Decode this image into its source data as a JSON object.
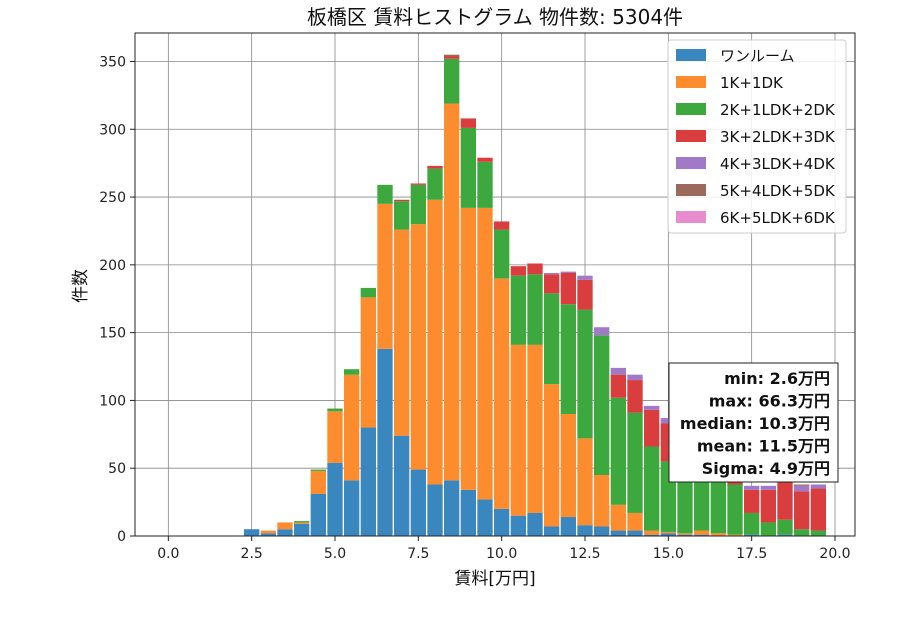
{
  "chart_data": {
    "type": "bar",
    "stacked": true,
    "title": "板橋区 賃料ヒストグラム 物件数: 5304件",
    "xlabel": "賃料[万円]",
    "ylabel": "件数",
    "xlim": [
      -1.0,
      20.6
    ],
    "ylim": [
      0,
      371
    ],
    "xticks": [
      0.0,
      2.5,
      5.0,
      7.5,
      10.0,
      12.5,
      15.0,
      17.5,
      20.0
    ],
    "xtick_labels": [
      "0.0",
      "2.5",
      "5.0",
      "7.5",
      "10.0",
      "12.5",
      "15.0",
      "17.5",
      "20.0"
    ],
    "yticks": [
      0,
      50,
      100,
      150,
      200,
      250,
      300,
      350
    ],
    "ytick_labels": [
      "0",
      "50",
      "100",
      "150",
      "200",
      "250",
      "300",
      "350"
    ],
    "grid": true,
    "legend_position": "top-right",
    "bin_width": 0.5,
    "bins": [
      2.5,
      3.0,
      3.5,
      4.0,
      4.5,
      5.0,
      5.5,
      6.0,
      6.5,
      7.0,
      7.5,
      8.0,
      8.5,
      9.0,
      9.5,
      10.0,
      10.5,
      11.0,
      11.5,
      12.0,
      12.5,
      13.0,
      13.5,
      14.0,
      14.5,
      15.0,
      15.5,
      16.0,
      16.5,
      17.0,
      17.5,
      18.0,
      18.5,
      19.0,
      19.5
    ],
    "series": [
      {
        "name": "ワンルーム",
        "color": "#3a87c0",
        "values": [
          5,
          2,
          5,
          9,
          31,
          54,
          41,
          80,
          138,
          74,
          49,
          38,
          41,
          34,
          27,
          20,
          15,
          17,
          7,
          14,
          8,
          7,
          4,
          4,
          1,
          2,
          1,
          1,
          0,
          0,
          1,
          0,
          1,
          0,
          0
        ]
      },
      {
        "name": "1K+1DK",
        "color": "#fd8c2e",
        "values": [
          0,
          2,
          5,
          1,
          17,
          38,
          78,
          96,
          107,
          152,
          181,
          210,
          278,
          208,
          215,
          170,
          126,
          124,
          105,
          76,
          64,
          38,
          19,
          13,
          3,
          1,
          1,
          3,
          2,
          1,
          0,
          0,
          0,
          0,
          0
        ]
      },
      {
        "name": "2K+1LDK+2DK",
        "color": "#3da83d",
        "values": [
          0,
          0,
          0,
          1,
          1,
          2,
          4,
          7,
          14,
          21,
          29,
          23,
          33,
          59,
          34,
          36,
          51,
          52,
          67,
          81,
          95,
          103,
          79,
          74,
          62,
          52,
          52,
          48,
          43,
          37,
          16,
          10,
          11,
          5,
          4
        ]
      },
      {
        "name": "3K+2LDK+3DK",
        "color": "#d93d3d",
        "values": [
          0,
          0,
          0,
          0,
          0,
          0,
          0,
          0,
          0,
          1,
          1,
          2,
          2,
          7,
          3,
          6,
          7,
          8,
          14,
          23,
          22,
          0,
          17,
          24,
          27,
          28,
          36,
          29,
          34,
          38,
          17,
          24,
          28,
          28,
          31
        ]
      },
      {
        "name": "4K+3LDK+4DK",
        "color": "#a07ac8",
        "values": [
          0,
          0,
          0,
          0,
          0,
          0,
          0,
          0,
          0,
          0,
          0,
          0,
          0,
          0,
          0,
          0,
          0,
          0,
          1,
          1,
          3,
          6,
          5,
          4,
          3,
          4,
          4,
          2,
          3,
          3,
          3,
          3,
          3,
          4,
          3
        ]
      },
      {
        "name": "5K+4LDK+5DK",
        "color": "#9c6a5c",
        "values": [
          0,
          0,
          0,
          0,
          0,
          0,
          0,
          0,
          0,
          0,
          0,
          0,
          1,
          0,
          0,
          0,
          0,
          0,
          0,
          0,
          0,
          0,
          0,
          0,
          0,
          0,
          0,
          0,
          0,
          1,
          0,
          0,
          0,
          1,
          0
        ]
      },
      {
        "name": "6K+5LDK+6DK",
        "color": "#e88bcf",
        "values": [
          0,
          0,
          0,
          0,
          0,
          0,
          0,
          0,
          0,
          0,
          0,
          0,
          0,
          0,
          0,
          0,
          0,
          0,
          0,
          0,
          0,
          0,
          0,
          0,
          0,
          0,
          0,
          0,
          0,
          0,
          0,
          0,
          0,
          0,
          0
        ]
      }
    ],
    "stats": [
      "min: 2.6万円",
      "max: 66.3万円",
      "median: 10.3万円",
      "mean: 11.5万円",
      "Sigma: 4.9万円"
    ]
  }
}
